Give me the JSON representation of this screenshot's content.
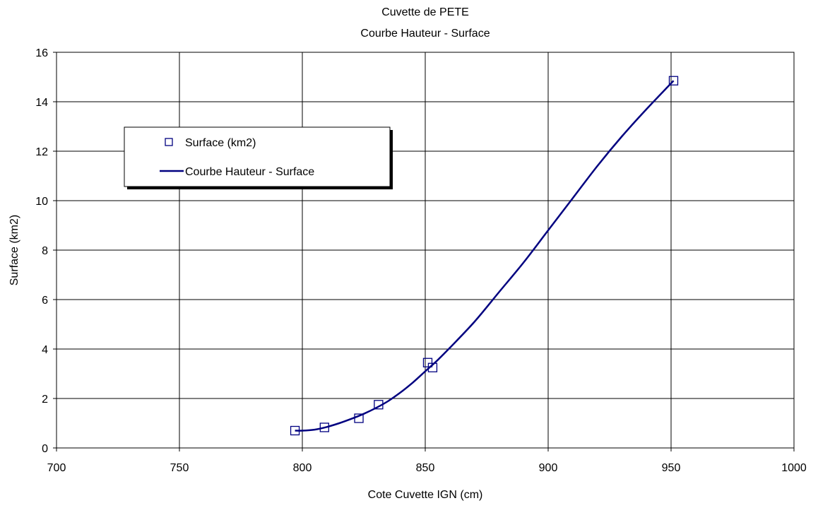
{
  "chart_data": {
    "type": "scatter",
    "title": "Cuvette de PETE",
    "subtitle": "Courbe Hauteur - Surface",
    "xlabel": "Cote Cuvette IGN (cm)",
    "ylabel": "Surface (km2)",
    "xlim": [
      700,
      1000
    ],
    "ylim": [
      0,
      16
    ],
    "xticks": [
      700,
      750,
      800,
      850,
      900,
      950,
      1000
    ],
    "yticks": [
      0,
      2,
      4,
      6,
      8,
      10,
      12,
      14,
      16
    ],
    "grid": true,
    "legend_position": "top-left",
    "series": [
      {
        "name": "Surface (km2)",
        "kind": "markers",
        "marker": "hollow-square",
        "color": "#000080",
        "x": [
          797,
          809,
          823,
          831,
          851,
          853,
          951
        ],
        "y": [
          0.7,
          0.83,
          1.2,
          1.75,
          3.45,
          3.25,
          14.85
        ]
      },
      {
        "name": "Courbe Hauteur - Surface",
        "kind": "line",
        "color": "#000080",
        "x": [
          797,
          800,
          805,
          810,
          815,
          820,
          825,
          830,
          835,
          840,
          845,
          850,
          855,
          860,
          870,
          880,
          890,
          900,
          910,
          920,
          930,
          940,
          951
        ],
        "y": [
          0.7,
          0.7,
          0.74,
          0.85,
          1.0,
          1.18,
          1.38,
          1.62,
          1.9,
          2.25,
          2.65,
          3.1,
          3.55,
          4.05,
          5.1,
          6.3,
          7.5,
          8.8,
          10.1,
          11.4,
          12.6,
          13.7,
          14.85
        ]
      }
    ]
  }
}
